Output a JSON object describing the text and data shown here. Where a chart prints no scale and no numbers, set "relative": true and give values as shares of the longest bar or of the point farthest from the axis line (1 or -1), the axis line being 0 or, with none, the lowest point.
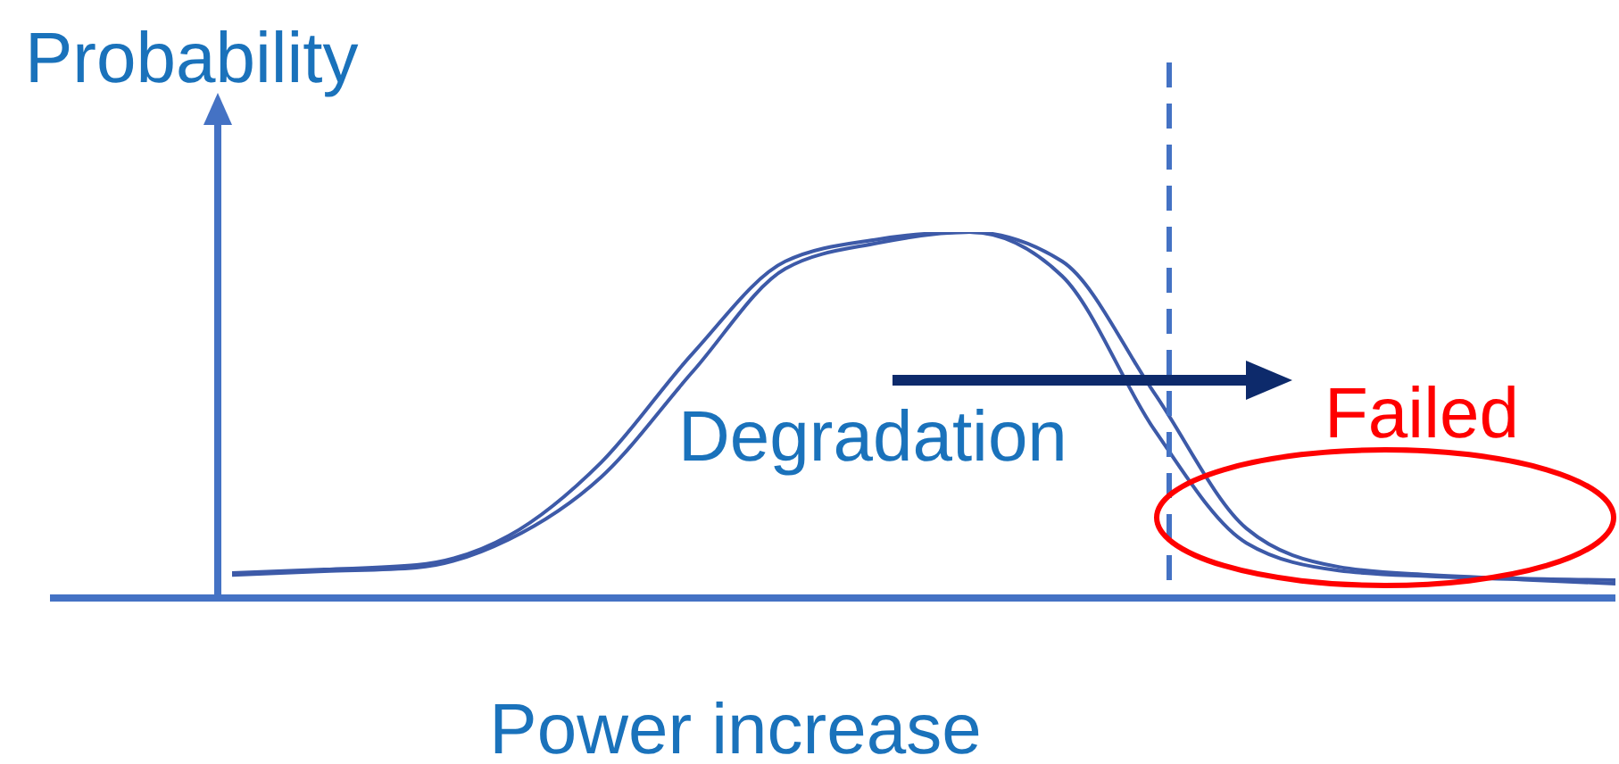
{
  "chart_data": {
    "type": "line",
    "relative": true,
    "ylabel": "Probability",
    "xlabel": "Power increase",
    "categories": [
      null,
      null,
      null,
      null,
      null,
      null,
      null,
      null,
      null,
      null,
      null,
      null,
      null,
      null,
      null,
      null
    ],
    "series": [
      {
        "color": "#3d5aa8",
        "values": [
          0.063,
          0.073,
          0.083,
          0.16,
          0.33,
          0.62,
          0.9,
          0.97,
          1.0,
          0.88,
          0.46,
          0.15,
          0.075,
          0.059,
          0.05,
          0.039
        ]
      },
      {
        "color": "#3d5aa8",
        "values": [
          0.068,
          0.078,
          0.09,
          0.17,
          0.37,
          0.67,
          0.92,
          0.98,
          1.0,
          0.92,
          0.56,
          0.19,
          0.085,
          0.063,
          0.053,
          0.049
        ]
      }
    ],
    "annotations": [
      "Degradation",
      "Failed"
    ]
  }
}
